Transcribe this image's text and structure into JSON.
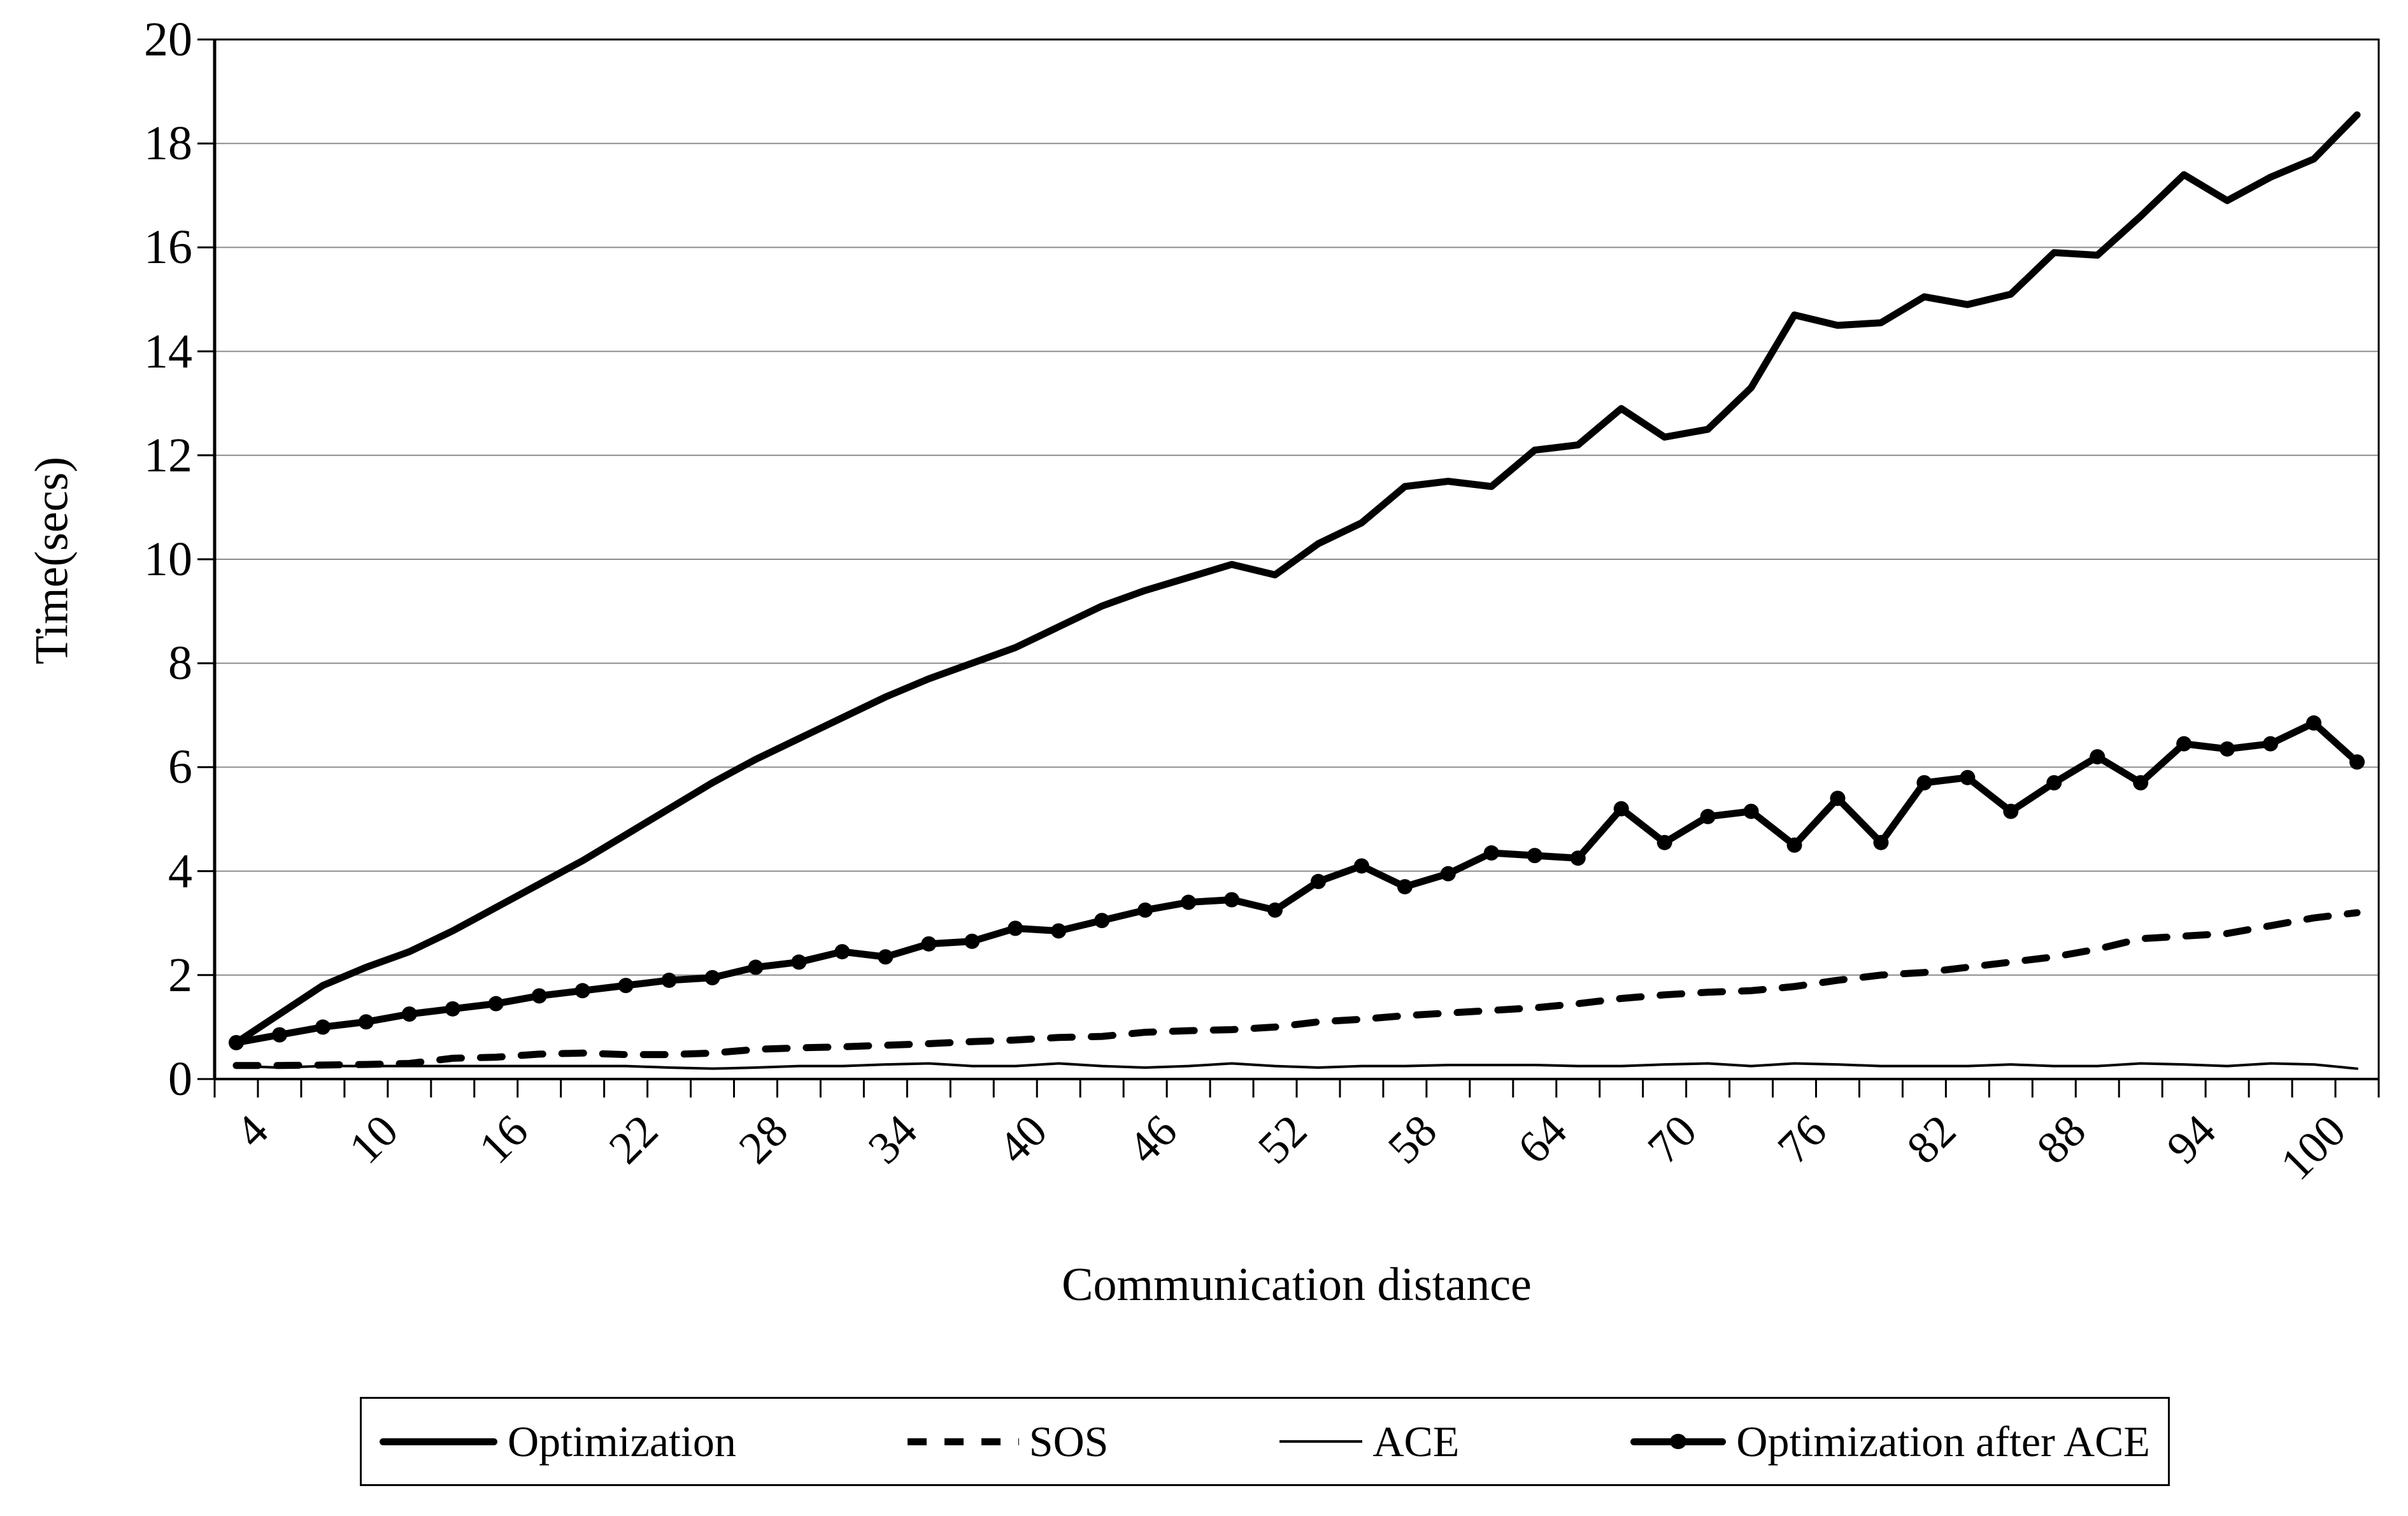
{
  "chart_data": {
    "type": "line",
    "title": "",
    "xlabel": "Communication distance",
    "ylabel": "Time(secs)",
    "ylim": [
      0,
      20
    ],
    "ytick_step": 2,
    "xlim_categories": [
      3,
      103
    ],
    "x": [
      4,
      6,
      8,
      10,
      12,
      14,
      16,
      18,
      20,
      22,
      24,
      26,
      28,
      30,
      32,
      34,
      36,
      38,
      40,
      42,
      44,
      46,
      48,
      50,
      52,
      54,
      56,
      58,
      60,
      62,
      64,
      66,
      68,
      70,
      72,
      74,
      76,
      78,
      80,
      82,
      84,
      86,
      88,
      90,
      92,
      94,
      96,
      98,
      100,
      102
    ],
    "xtick_labels": [
      4,
      10,
      16,
      22,
      28,
      34,
      40,
      46,
      52,
      58,
      64,
      70,
      76,
      82,
      88,
      94,
      100
    ],
    "grid": "horizontal",
    "legend_position": "bottom",
    "colors": {
      "line": "#000000",
      "grid": "#8c8c8c",
      "background": "#ffffff"
    },
    "series": [
      {
        "name": "Optimization",
        "style": "solid-thick",
        "values": [
          0.7,
          1.25,
          1.8,
          2.15,
          2.45,
          2.85,
          3.3,
          3.75,
          4.2,
          4.7,
          5.2,
          5.7,
          6.15,
          6.55,
          6.95,
          7.35,
          7.7,
          8.0,
          8.3,
          8.7,
          9.1,
          9.4,
          9.65,
          9.9,
          9.7,
          10.3,
          10.7,
          11.4,
          11.5,
          11.4,
          12.1,
          12.2,
          12.9,
          12.35,
          12.5,
          13.3,
          14.7,
          14.5,
          14.55,
          15.05,
          14.9,
          15.1,
          15.9,
          15.85,
          16.6,
          17.4,
          16.9,
          17.35,
          17.7,
          18.55
        ]
      },
      {
        "name": "SOS",
        "style": "dashed-thick",
        "values": [
          0.26,
          0.26,
          0.27,
          0.28,
          0.3,
          0.4,
          0.42,
          0.48,
          0.5,
          0.47,
          0.47,
          0.5,
          0.57,
          0.6,
          0.62,
          0.65,
          0.68,
          0.72,
          0.75,
          0.8,
          0.82,
          0.9,
          0.93,
          0.95,
          1.0,
          1.1,
          1.15,
          1.22,
          1.27,
          1.32,
          1.37,
          1.45,
          1.55,
          1.62,
          1.67,
          1.7,
          1.78,
          1.9,
          2.0,
          2.05,
          2.15,
          2.25,
          2.35,
          2.5,
          2.7,
          2.75,
          2.8,
          2.95,
          3.1,
          3.2
        ]
      },
      {
        "name": "ACE",
        "style": "solid-thin",
        "values": [
          0.25,
          0.22,
          0.25,
          0.25,
          0.25,
          0.25,
          0.25,
          0.25,
          0.25,
          0.25,
          0.22,
          0.2,
          0.22,
          0.25,
          0.25,
          0.28,
          0.3,
          0.25,
          0.25,
          0.3,
          0.25,
          0.22,
          0.25,
          0.3,
          0.25,
          0.22,
          0.25,
          0.25,
          0.27,
          0.27,
          0.27,
          0.25,
          0.25,
          0.28,
          0.3,
          0.25,
          0.3,
          0.28,
          0.25,
          0.25,
          0.25,
          0.28,
          0.25,
          0.25,
          0.3,
          0.28,
          0.25,
          0.3,
          0.28,
          0.2
        ]
      },
      {
        "name": "Optimization after ACE",
        "style": "solid-thick-markers",
        "values": [
          0.7,
          0.85,
          1.0,
          1.1,
          1.25,
          1.35,
          1.45,
          1.6,
          1.7,
          1.8,
          1.9,
          1.95,
          2.15,
          2.25,
          2.45,
          2.35,
          2.6,
          2.65,
          2.9,
          2.85,
          3.05,
          3.25,
          3.4,
          3.45,
          3.25,
          3.8,
          4.1,
          3.7,
          3.95,
          4.35,
          4.3,
          4.25,
          5.2,
          4.55,
          5.05,
          5.15,
          4.5,
          5.4,
          4.55,
          5.7,
          5.8,
          5.15,
          5.7,
          6.2,
          5.7,
          6.45,
          6.35,
          6.45,
          6.85,
          6.1
        ]
      }
    ]
  }
}
